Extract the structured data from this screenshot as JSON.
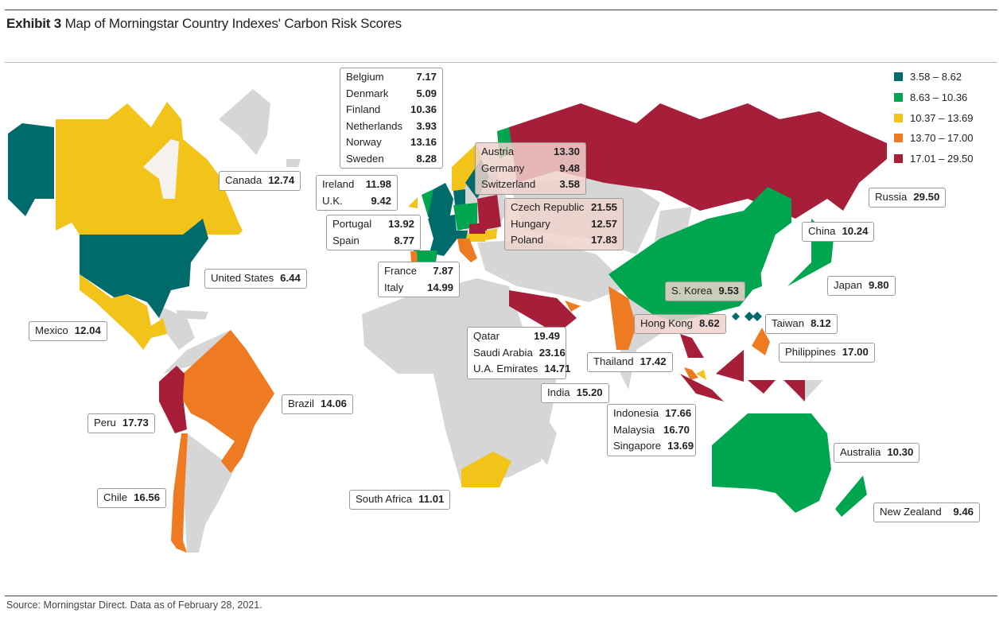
{
  "title": {
    "bold": "Exhibit 3",
    "text": "Map of Morningstar Country Indexes' Carbon Risk Scores"
  },
  "source": "Source: Morningstar Direct. Data as of February 28, 2021.",
  "colors": {
    "c1": "#006b6b",
    "c2": "#00a64f",
    "c3": "#f2c318",
    "c4": "#ee7b22",
    "c5": "#a61e38",
    "nodata": "#d6d6d6"
  },
  "legend": [
    {
      "range": "3.58 – 8.62",
      "color": "#006b6b"
    },
    {
      "range": "8.63 – 10.36",
      "color": "#00a64f"
    },
    {
      "range": "10.37 – 13.69",
      "color": "#f2c318"
    },
    {
      "range": "13.70 – 17.00",
      "color": "#ee7b22"
    },
    {
      "range": "17.01 – 29.50",
      "color": "#a61e38"
    }
  ],
  "labels": [
    {
      "rows": [
        {
          "n": "Belgium",
          "v": "7.17"
        },
        {
          "n": "Denmark",
          "v": "5.09"
        },
        {
          "n": "Finland",
          "v": "10.36"
        },
        {
          "n": "Netherlands",
          "v": "3.93"
        },
        {
          "n": "Norway",
          "v": "13.16"
        },
        {
          "n": "Sweden",
          "v": "8.28"
        }
      ]
    },
    {
      "rows": [
        {
          "n": "Canada",
          "v": "12.74"
        }
      ]
    },
    {
      "rows": [
        {
          "n": "Austria",
          "v": "13.30"
        },
        {
          "n": "Germany",
          "v": "9.48"
        },
        {
          "n": "Switzerland",
          "v": "3.58"
        }
      ]
    },
    {
      "rows": [
        {
          "n": "Ireland",
          "v": "11.98"
        },
        {
          "n": "U.K.",
          "v": "9.42"
        }
      ]
    },
    {
      "rows": [
        {
          "n": "Czech Republic",
          "v": "21.55"
        },
        {
          "n": "Hungary",
          "v": "12.57"
        },
        {
          "n": "Poland",
          "v": "17.83"
        }
      ]
    },
    {
      "rows": [
        {
          "n": "Portugal",
          "v": "13.92"
        },
        {
          "n": "Spain",
          "v": "8.77"
        }
      ]
    },
    {
      "rows": [
        {
          "n": "Russia",
          "v": "29.50"
        }
      ]
    },
    {
      "rows": [
        {
          "n": "China",
          "v": "10.24"
        }
      ]
    },
    {
      "rows": [
        {
          "n": "France",
          "v": "7.87"
        },
        {
          "n": "Italy",
          "v": "14.99"
        }
      ]
    },
    {
      "rows": [
        {
          "n": "United States",
          "v": "6.44"
        }
      ]
    },
    {
      "rows": [
        {
          "n": "Japan",
          "v": "9.80"
        }
      ]
    },
    {
      "rows": [
        {
          "n": "S. Korea",
          "v": "9.53"
        }
      ]
    },
    {
      "rows": [
        {
          "n": "Mexico",
          "v": "12.04"
        }
      ]
    },
    {
      "rows": [
        {
          "n": "Hong Kong",
          "v": "8.62"
        }
      ]
    },
    {
      "rows": [
        {
          "n": "Taiwan",
          "v": "8.12"
        }
      ]
    },
    {
      "rows": [
        {
          "n": "Qatar",
          "v": "19.49"
        },
        {
          "n": "Saudi Arabia",
          "v": "23.16"
        },
        {
          "n": "U.A. Emirates",
          "v": "14.71"
        }
      ]
    },
    {
      "rows": [
        {
          "n": "Philippines",
          "v": "17.00"
        }
      ]
    },
    {
      "rows": [
        {
          "n": "Thailand",
          "v": "17.42"
        }
      ]
    },
    {
      "rows": [
        {
          "n": "India",
          "v": "15.20"
        }
      ]
    },
    {
      "rows": [
        {
          "n": "Brazil",
          "v": "14.06"
        }
      ]
    },
    {
      "rows": [
        {
          "n": "Indonesia",
          "v": "17.66"
        },
        {
          "n": "Malaysia",
          "v": "16.70"
        },
        {
          "n": "Singapore",
          "v": "13.69"
        }
      ]
    },
    {
      "rows": [
        {
          "n": "Peru",
          "v": "17.73"
        }
      ]
    },
    {
      "rows": [
        {
          "n": "Australia",
          "v": "10.30"
        }
      ]
    },
    {
      "rows": [
        {
          "n": "Chile",
          "v": "16.56"
        }
      ]
    },
    {
      "rows": [
        {
          "n": "South Africa",
          "v": "11.01"
        }
      ]
    },
    {
      "rows": [
        {
          "n": "New Zealand",
          "v": "9.46"
        }
      ]
    }
  ]
}
